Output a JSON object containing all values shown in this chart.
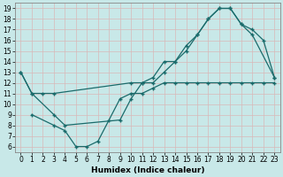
{
  "xlabel": "Humidex (Indice chaleur)",
  "xlim": [
    -0.5,
    23.5
  ],
  "ylim": [
    5.5,
    19.5
  ],
  "xticks": [
    0,
    1,
    2,
    3,
    4,
    5,
    6,
    7,
    8,
    9,
    10,
    11,
    12,
    13,
    14,
    15,
    16,
    17,
    18,
    19,
    20,
    21,
    22,
    23
  ],
  "yticks": [
    6,
    7,
    8,
    9,
    10,
    11,
    12,
    13,
    14,
    15,
    16,
    17,
    18,
    19
  ],
  "bg_color": "#c8e8e8",
  "grid_color": "#b0d4d4",
  "line_color": "#1a6b6b",
  "line1_x": [
    0,
    1,
    2,
    3,
    10,
    11,
    12,
    13,
    14,
    15,
    16,
    17,
    18,
    19,
    20,
    21,
    23
  ],
  "line1_y": [
    13,
    11,
    11,
    11,
    12,
    12,
    12.5,
    14,
    14,
    15.5,
    16.5,
    18,
    19,
    19,
    17.5,
    16.5,
    12.5
  ],
  "line2_x": [
    0,
    1,
    3,
    4,
    9,
    10,
    11,
    12,
    13,
    14,
    15,
    16,
    17,
    18,
    19,
    20,
    21,
    22,
    23
  ],
  "line2_y": [
    13,
    11,
    9,
    8,
    8.5,
    10.5,
    12,
    12,
    13,
    14,
    15,
    16.5,
    18,
    19,
    19,
    17.5,
    17,
    16,
    12.5
  ],
  "line3_x": [
    1,
    3,
    4,
    5,
    6,
    7,
    8,
    9,
    10,
    11,
    12,
    13,
    14,
    15,
    16,
    17,
    18,
    19,
    20,
    21,
    22,
    23
  ],
  "line3_y": [
    9,
    8,
    7.5,
    6,
    6,
    6.5,
    8.5,
    10.5,
    11,
    11,
    11.5,
    12,
    12,
    12,
    12,
    12,
    12,
    12,
    12,
    12,
    12,
    12
  ],
  "markersize": 3,
  "linewidth": 0.9,
  "figsize": [
    3.2,
    2.0
  ],
  "dpi": 100,
  "tick_labelsize": 5.5,
  "xlabel_fontsize": 6.5
}
